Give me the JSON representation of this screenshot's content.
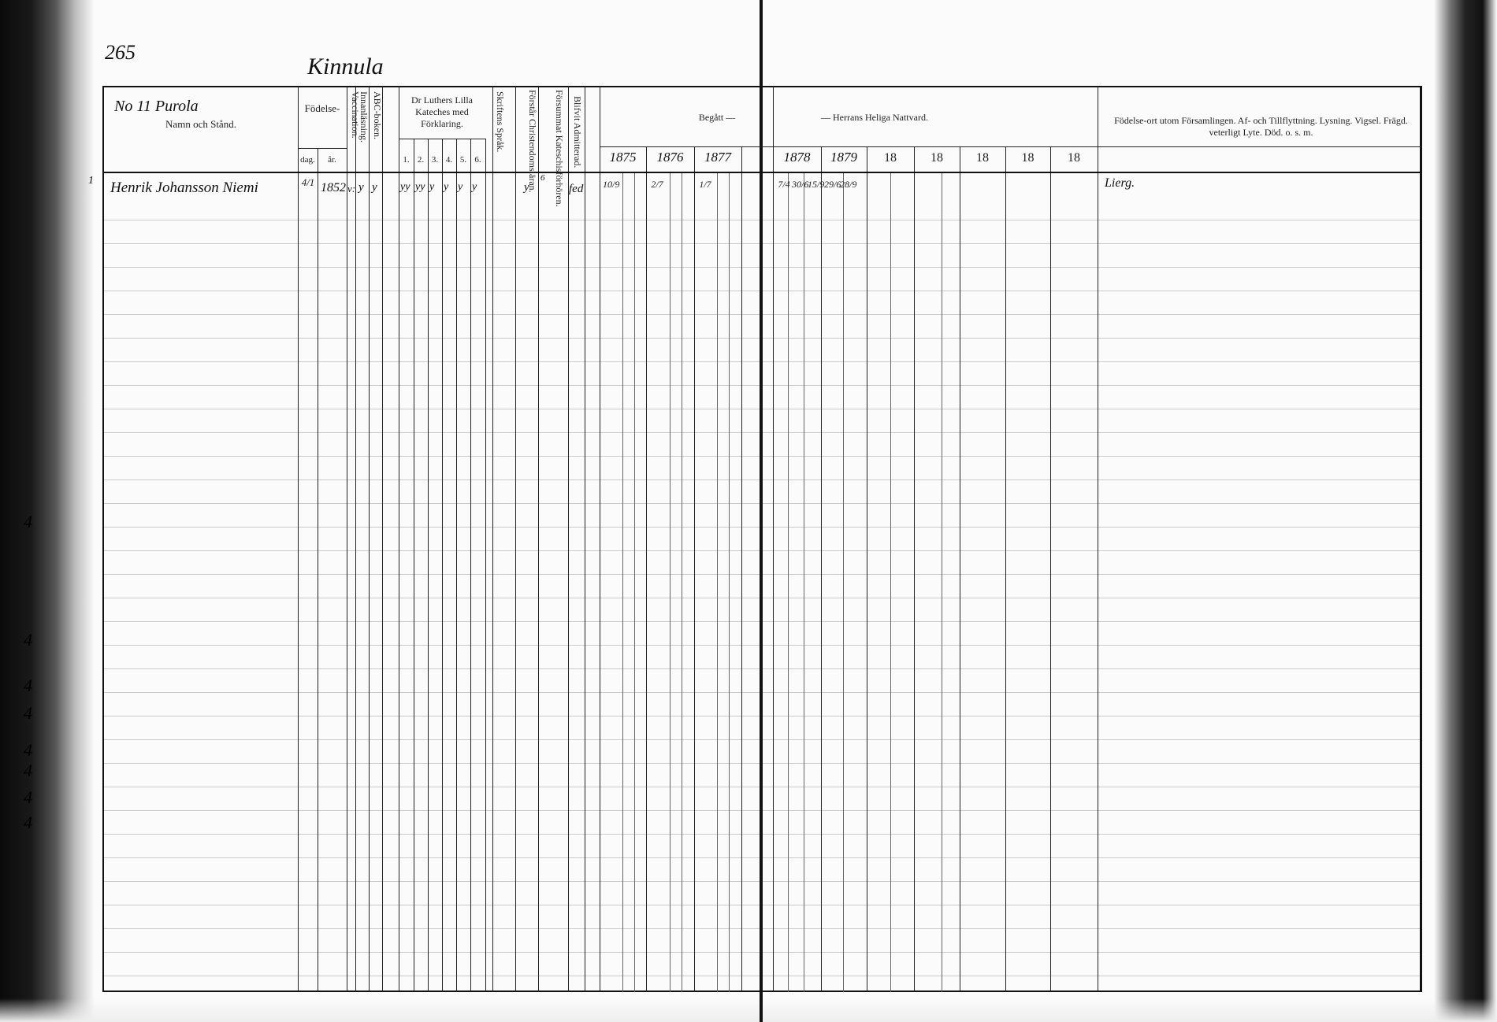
{
  "page_number": "265",
  "village": "Kinnula",
  "header": {
    "household": "No 11 Purola",
    "name_col": "Namn och Stånd.",
    "birth": "Födelse-",
    "birth_day": "dag.",
    "birth_year": "år.",
    "vaccination": "Vaccination.",
    "innanlasning": "Innanläsning.",
    "abc": "ABC-boken.",
    "catechism": "Dr Luthers Lilla Kateches med Förklaring.",
    "catechism_parts": [
      "1.",
      "2.",
      "3.",
      "4.",
      "5.",
      "6."
    ],
    "skrift": "Skriftens Språk.",
    "christendom": "Förstår Christendomsläran.",
    "forsummat": "Försummat Kateschisförhören.",
    "admitterad": "Blifvit Admitterad.",
    "begatt": "Begått —",
    "nattvard": "— Herrans Heliga Nattvard.",
    "years": [
      "1875",
      "1876",
      "1877",
      "1878",
      "1879",
      "18",
      "18",
      "18",
      "18",
      "18"
    ],
    "notes": "Födelse-ort utom Församlingen. Af- och Tillflyttning. Lysning. Vigsel. Frägd. veterligt Lyte. Död. o. s. m."
  },
  "entries": [
    {
      "row": "1",
      "name": "Henrik Johansson Niemi",
      "birth_day": "4/1",
      "birth_year": "1852",
      "vaccination": "v:",
      "innanlasning": "y",
      "abc": "y",
      "catechism": [
        "yy",
        "yy",
        "y",
        "y",
        "y",
        "y"
      ],
      "christendom": "y",
      "forsummat": "6",
      "admitterad": "fed",
      "communion": {
        "1875": [
          "10/9"
        ],
        "1876": [
          "2/7"
        ],
        "1877": [
          "1/7"
        ],
        "1878": [
          "7/4",
          "30/6",
          "15/9"
        ],
        "1879": [
          "29/6",
          "28/9"
        ]
      },
      "notes": "Lierg."
    }
  ],
  "margin_marks": [
    "4",
    "4",
    "4",
    "4",
    "4",
    "4",
    "4",
    "4"
  ]
}
